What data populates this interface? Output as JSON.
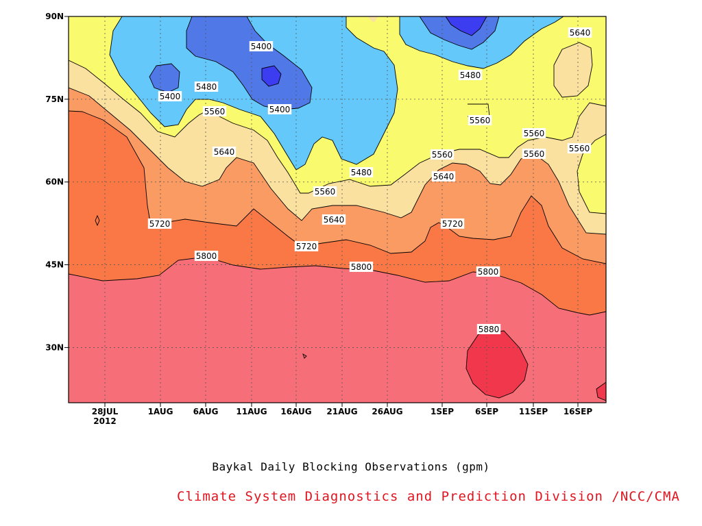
{
  "chart_data": {
    "type": "heatmap",
    "title": "Baykal Daily Blocking Observations (gpm)",
    "xlabel": "",
    "ylabel": "",
    "x_ticks": [
      "28JUL",
      "1AUG",
      "6AUG",
      "11AUG",
      "16AUG",
      "21AUG",
      "26AUG",
      "1SEP",
      "6SEP",
      "11SEP",
      "16SEP"
    ],
    "x_year_label": "2012",
    "y_ticks": [
      "30N",
      "45N",
      "60N",
      "75N",
      "90N"
    ],
    "y_range": [
      20,
      90
    ],
    "contour_levels": [
      5400,
      5480,
      5560,
      5640,
      5720,
      5800,
      5880
    ],
    "contour_labels": [
      "5400",
      "5400",
      "5400",
      "5480",
      "5560",
      "5640",
      "5720",
      "5800",
      "5560",
      "5640",
      "5720",
      "5800",
      "5480",
      "5560",
      "5640",
      "5720",
      "5800",
      "5880",
      "5480",
      "5560",
      "5560",
      "5640",
      "5560",
      "5560",
      "5800"
    ],
    "fill_colors": {
      "below_5400": "#5078e6",
      "5400_5480": "#64c8fa",
      "5480_5560": "#fafa6e",
      "5560_5640": "#fae1a0",
      "5640_5720": "#fa9b64",
      "5720_5800": "#fa7846",
      "5800_5880": "#f56e78",
      "above_5880": "#f0374b",
      "core_min": "#3c3cf0"
    },
    "grid": true
  },
  "caption": {
    "title": "Baykal Daily Blocking Observations (gpm)",
    "credit": "Climate System Diagnostics and Prediction Division /NCC/CMA"
  }
}
